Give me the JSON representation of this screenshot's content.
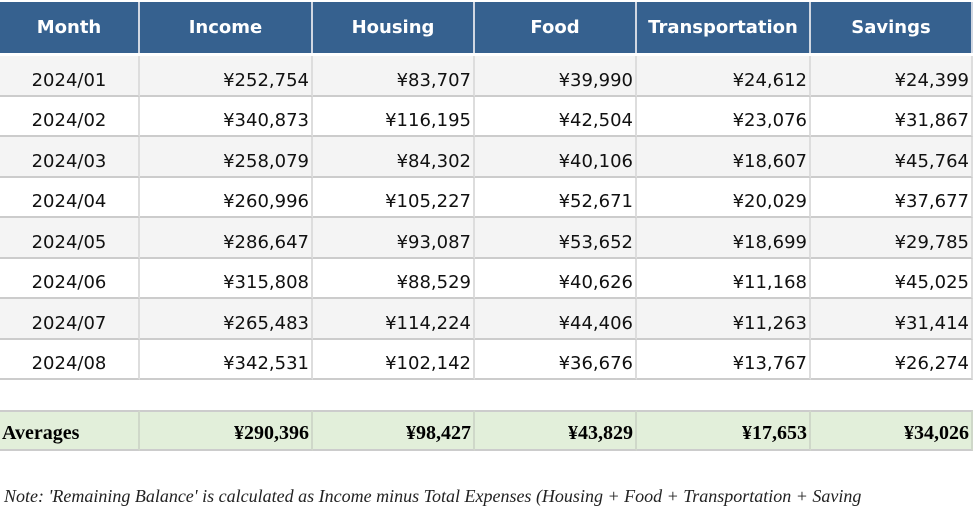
{
  "table": {
    "header": [
      "Month",
      "Income",
      "Housing",
      "Food",
      "Transportation",
      "Savings"
    ],
    "rows": [
      [
        "2024/01",
        "¥252,754",
        "¥83,707",
        "¥39,990",
        "¥24,612",
        "¥24,399"
      ],
      [
        "2024/02",
        "¥340,873",
        "¥116,195",
        "¥42,504",
        "¥23,076",
        "¥31,867"
      ],
      [
        "2024/03",
        "¥258,079",
        "¥84,302",
        "¥40,106",
        "¥18,607",
        "¥45,764"
      ],
      [
        "2024/04",
        "¥260,996",
        "¥105,227",
        "¥52,671",
        "¥20,029",
        "¥37,677"
      ],
      [
        "2024/05",
        "¥286,647",
        "¥93,087",
        "¥53,652",
        "¥18,699",
        "¥29,785"
      ],
      [
        "2024/06",
        "¥315,808",
        "¥88,529",
        "¥40,626",
        "¥11,168",
        "¥45,025"
      ],
      [
        "2024/07",
        "¥265,483",
        "¥114,224",
        "¥44,406",
        "¥11,263",
        "¥31,414"
      ],
      [
        "2024/08",
        "¥342,531",
        "¥102,142",
        "¥36,676",
        "¥13,767",
        "¥26,274"
      ]
    ]
  },
  "averages": [
    "Averages",
    "¥290,396",
    "¥98,427",
    "¥43,829",
    "¥17,653",
    "¥34,026"
  ],
  "note": "Note: 'Remaining Balance' is calculated as Income minus Total Expenses (Housing + Food + Transportation + Saving"
}
